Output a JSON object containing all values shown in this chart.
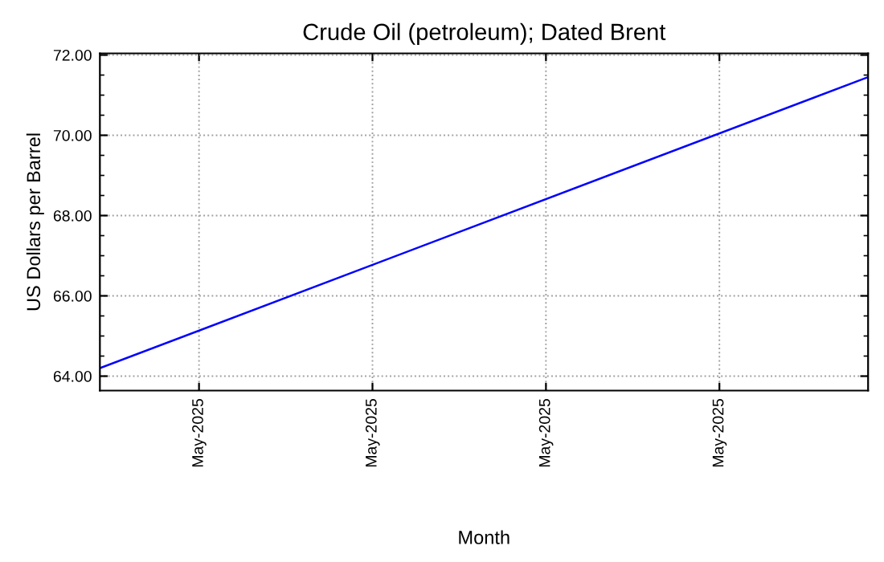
{
  "chart_data": {
    "type": "line",
    "title": "Crude Oil (petroleum); Dated Brent",
    "xlabel": "Month",
    "ylabel": "US Dollars per Barrel",
    "x": [
      "2025-05-01",
      "2025-06-01"
    ],
    "series": [
      {
        "color": "#0000ff",
        "values": [
          64.2,
          71.45
        ]
      }
    ],
    "xlim": [
      "2025-05-01",
      "2025-06-01"
    ],
    "xticks": [
      {
        "value": "2025-05-05",
        "label": "May-2025"
      },
      {
        "value": "2025-05-12",
        "label": "May-2025"
      },
      {
        "value": "2025-05-19",
        "label": "May-2025"
      },
      {
        "value": "2025-05-26",
        "label": "May-2025"
      }
    ],
    "ylim": [
      63.64,
      72.04
    ],
    "yticks": [
      {
        "value": 64,
        "label": "64.00"
      },
      {
        "value": 66,
        "label": "66.00"
      },
      {
        "value": 68,
        "label": "68.00"
      },
      {
        "value": 70,
        "label": "70.00"
      },
      {
        "value": 72,
        "label": "72.00"
      }
    ],
    "grid": true,
    "legend": false,
    "marker": "none",
    "line_style": "solid"
  }
}
